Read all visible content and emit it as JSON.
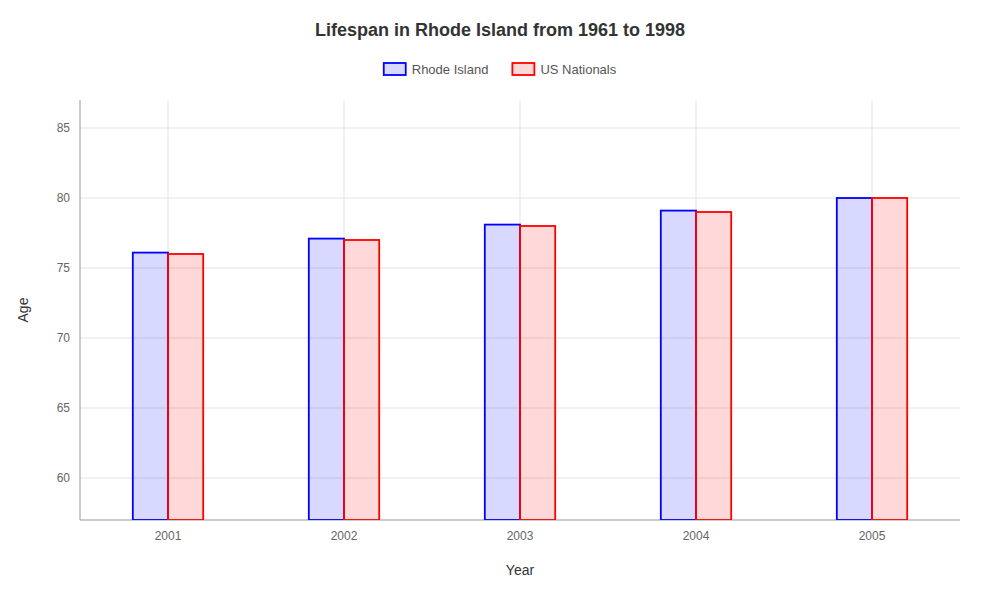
{
  "chart_data": {
    "type": "bar",
    "title": "Lifespan in Rhode Island from 1961 to 1998",
    "xlabel": "Year",
    "ylabel": "Age",
    "categories": [
      "2001",
      "2002",
      "2003",
      "2004",
      "2005"
    ],
    "series": [
      {
        "name": "Rhode Island",
        "color": "#0000ff",
        "values": [
          76.1,
          77.1,
          78.1,
          79.1,
          80.0
        ]
      },
      {
        "name": "US Nationals",
        "color": "#ff0000",
        "values": [
          76.0,
          77.0,
          78.0,
          79.0,
          80.0
        ]
      }
    ],
    "ylim": [
      57,
      87
    ],
    "yticks": [
      60,
      65,
      70,
      75,
      80,
      85
    ],
    "grid": true,
    "legend": "top"
  }
}
